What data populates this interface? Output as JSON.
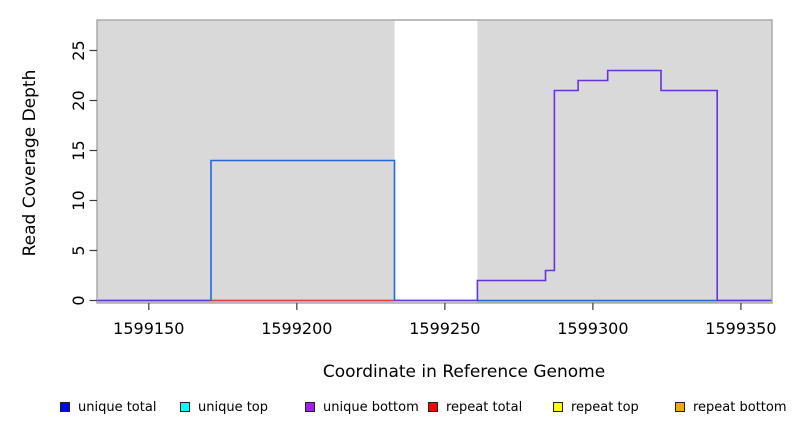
{
  "chart_data": {
    "type": "line",
    "subtype": "step",
    "title": "",
    "xlabel": "Coordinate in Reference Genome",
    "ylabel": "Read Coverage Depth",
    "xlim": [
      1599132.5,
      1599360.5
    ],
    "ylim": [
      -0.25,
      28.05
    ],
    "x_ticks": [
      1599150,
      1599200,
      1599250,
      1599300,
      1599350
    ],
    "y_ticks": [
      0,
      5,
      10,
      15,
      20,
      25
    ],
    "grid": false,
    "plot_bg_color": "#D9D9D9",
    "plot_border_color": "#A6A6A6",
    "masked_region": {
      "x0": 1599233,
      "x1": 1599261,
      "color": "#FFFFFF"
    },
    "series": [
      {
        "name": "unique total",
        "color": "#2268E0",
        "width": 1.6,
        "points": [
          [
            1599132.5,
            0
          ],
          [
            1599171,
            0
          ],
          [
            1599171,
            14
          ],
          [
            1599233,
            14
          ],
          [
            1599233,
            0
          ],
          [
            1599360.5,
            0
          ]
        ]
      },
      {
        "name": "unique bottom",
        "color": "#6632E0",
        "width": 1.6,
        "points": [
          [
            1599132.5,
            0
          ],
          [
            1599261,
            0
          ],
          [
            1599261,
            2
          ],
          [
            1599284,
            2
          ],
          [
            1599284,
            3
          ],
          [
            1599287,
            3
          ],
          [
            1599287,
            21
          ],
          [
            1599295,
            21
          ],
          [
            1599295,
            22
          ],
          [
            1599305,
            22
          ],
          [
            1599305,
            23
          ],
          [
            1599323,
            23
          ],
          [
            1599323,
            21
          ],
          [
            1599342,
            21
          ],
          [
            1599342,
            0
          ],
          [
            1599360.5,
            0
          ]
        ]
      },
      {
        "name": "repeat total",
        "color": "#E34040",
        "width": 1.3,
        "points": [
          [
            1599171,
            0
          ],
          [
            1599233,
            0
          ]
        ]
      },
      {
        "name": "green zero baseline",
        "color": "#8CC98C",
        "width": 1.3,
        "pixel_dy": 1.5,
        "points": [
          [
            1599261,
            0
          ],
          [
            1599342,
            0
          ]
        ]
      }
    ],
    "legend_position": "bottom",
    "legend_entries": [
      {
        "label": "unique total",
        "color": "#0000FF"
      },
      {
        "label": "unique top",
        "color": "#00FFFF"
      },
      {
        "label": "unique bottom",
        "color": "#A020F0"
      },
      {
        "label": "repeat total",
        "color": "#FF0000"
      },
      {
        "label": "repeat top",
        "color": "#FFFF00"
      },
      {
        "label": "repeat bottom",
        "color": "#FFA500"
      }
    ]
  }
}
